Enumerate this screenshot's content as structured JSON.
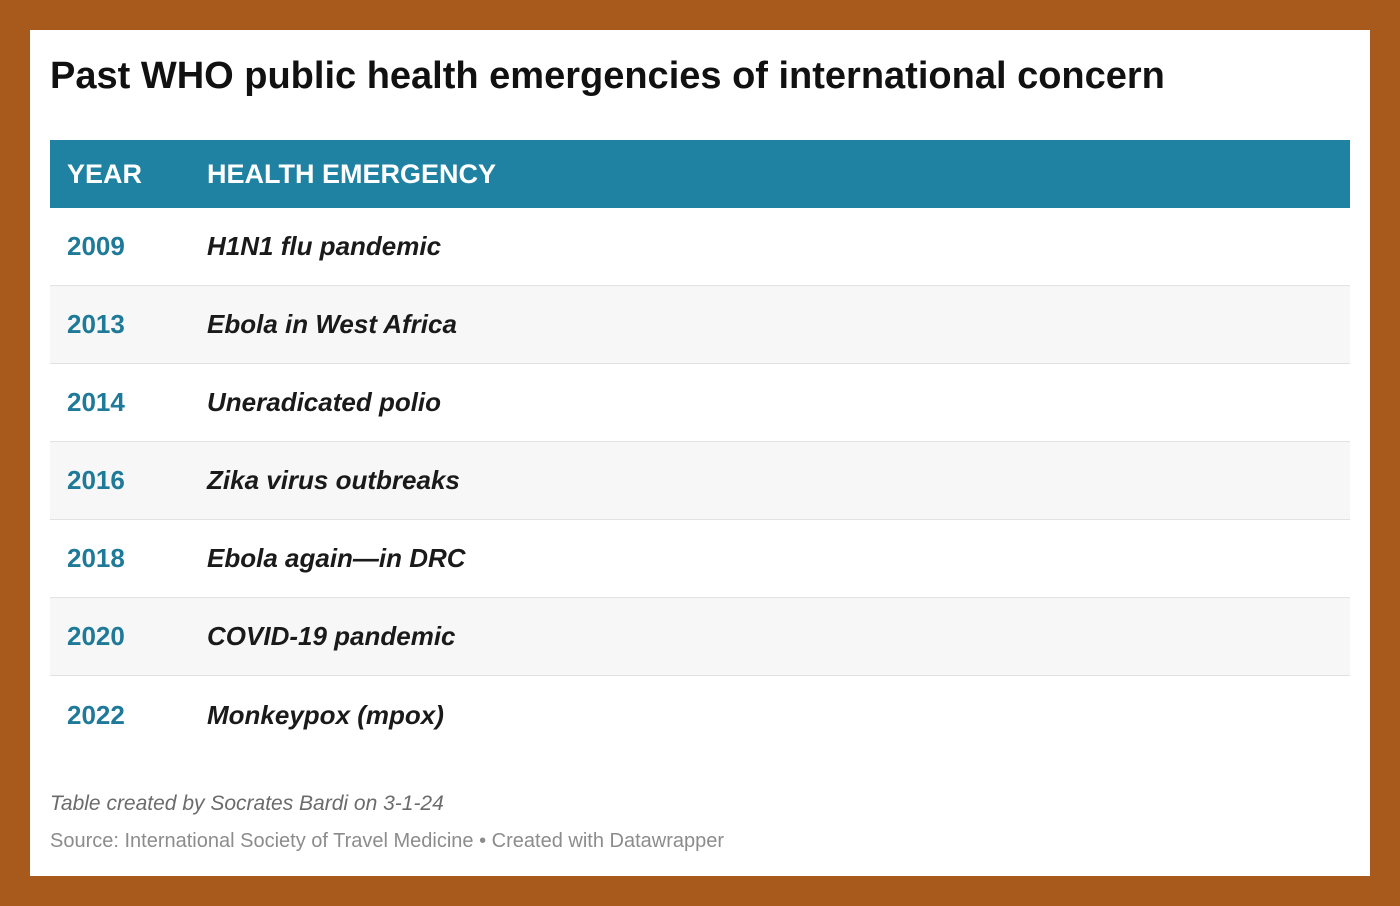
{
  "title": "Past WHO public health emergencies of international concern",
  "chart_data": {
    "type": "table",
    "columns": [
      "YEAR",
      "HEALTH EMERGENCY"
    ],
    "rows": [
      {
        "year": "2009",
        "emergency": "H1N1 flu pandemic"
      },
      {
        "year": "2013",
        "emergency": "Ebola in West Africa"
      },
      {
        "year": "2014",
        "emergency": "Uneradicated polio"
      },
      {
        "year": "2016",
        "emergency": "Zika virus outbreaks"
      },
      {
        "year": "2018",
        "emergency": "Ebola again—in DRC"
      },
      {
        "year": "2020",
        "emergency": "COVID-19 pandemic"
      },
      {
        "year": "2022",
        "emergency": "Monkeypox (mpox)"
      }
    ]
  },
  "notes": "Table created by Socrates Bardi on 3-1-24",
  "source": "Source: International Society of Travel Medicine • Created with Datawrapper",
  "colors": {
    "frame": "#a85a1c",
    "header_bg": "#1f82a3",
    "year_text": "#1f7a99"
  }
}
